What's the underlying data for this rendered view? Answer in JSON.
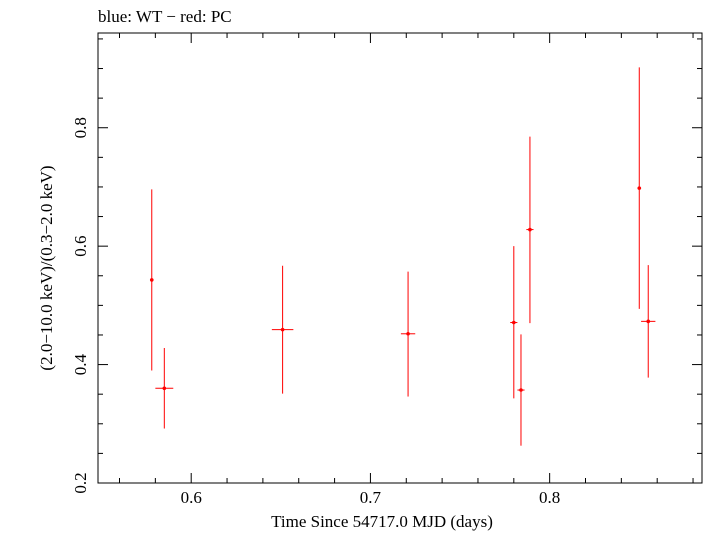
{
  "chart_data": {
    "type": "scatter",
    "title": "blue: WT − red: PC",
    "xlabel": "Time Since 54717.0 MJD (days)",
    "ylabel": "(2.0−10.0 keV)/(0.3−2.0 keV)",
    "xlim": [
      0.548,
      0.885
    ],
    "ylim": [
      0.2,
      0.96
    ],
    "x_ticks": [
      0.6,
      0.7,
      0.8
    ],
    "x_tick_labels": [
      "0.6",
      "0.7",
      "0.8"
    ],
    "y_ticks": [
      0.2,
      0.4,
      0.6,
      0.8
    ],
    "y_tick_labels": [
      "0.2",
      "0.4",
      "0.6",
      "0.8"
    ],
    "x_minor_step": 0.02,
    "y_minor_step": 0.05,
    "grid": false,
    "series": [
      {
        "name": "WT",
        "color": "#0000ff",
        "points": []
      },
      {
        "name": "PC",
        "color": "#ff0000",
        "points": [
          {
            "x": 0.578,
            "xerr": 0.001,
            "y": 0.543,
            "ylo": 0.39,
            "yhi": 0.696
          },
          {
            "x": 0.585,
            "xerr": 0.005,
            "y": 0.36,
            "ylo": 0.292,
            "yhi": 0.428
          },
          {
            "x": 0.651,
            "xerr": 0.006,
            "y": 0.459,
            "ylo": 0.351,
            "yhi": 0.567
          },
          {
            "x": 0.721,
            "xerr": 0.004,
            "y": 0.452,
            "ylo": 0.346,
            "yhi": 0.557
          },
          {
            "x": 0.78,
            "xerr": 0.002,
            "y": 0.471,
            "ylo": 0.343,
            "yhi": 0.6
          },
          {
            "x": 0.784,
            "xerr": 0.002,
            "y": 0.357,
            "ylo": 0.263,
            "yhi": 0.451
          },
          {
            "x": 0.789,
            "xerr": 0.002,
            "y": 0.628,
            "ylo": 0.47,
            "yhi": 0.785
          },
          {
            "x": 0.85,
            "xerr": 0.001,
            "y": 0.698,
            "ylo": 0.494,
            "yhi": 0.902
          },
          {
            "x": 0.855,
            "xerr": 0.004,
            "y": 0.473,
            "ylo": 0.378,
            "yhi": 0.568
          }
        ]
      }
    ]
  }
}
